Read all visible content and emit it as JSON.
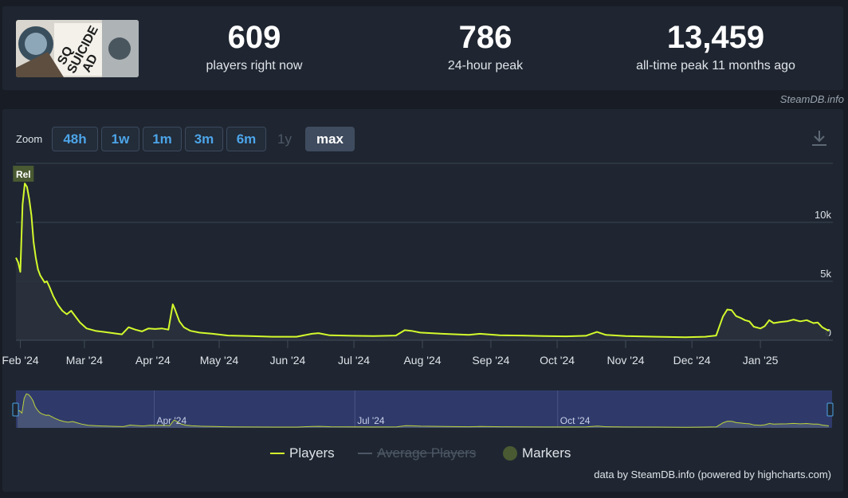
{
  "stats": {
    "now_value": "609",
    "now_label": "players right now",
    "peak24_value": "786",
    "peak24_label": "24-hour peak",
    "alltime_value": "13,459",
    "alltime_label": "all-time peak 11 months ago"
  },
  "credit_top": "SteamDB.info",
  "zoom": {
    "label": "Zoom",
    "buttons": [
      "48h",
      "1w",
      "1m",
      "3m",
      "6m",
      "1y",
      "max"
    ],
    "active": "max",
    "disabled": [
      "1y"
    ]
  },
  "legend": {
    "players": "Players",
    "average": "Average Players",
    "markers": "Markers"
  },
  "credit_bottom": "data by SteamDB.info (powered by highcharts.com)",
  "colors": {
    "players_line": "#d4fa2c",
    "marker": "#4a5a32",
    "accent_blue": "#4ca5e8",
    "navigator_bg": "#2f3a6b"
  },
  "chart_data": {
    "type": "line",
    "ylim": [
      0,
      15000
    ],
    "y_ticks": [
      0,
      5000,
      10000
    ],
    "y_tick_labels": [
      "0",
      "5k",
      "10k"
    ],
    "x_tick_labels": [
      "Feb '24",
      "Mar '24",
      "Apr '24",
      "May '24",
      "Jun '24",
      "Jul '24",
      "Aug '24",
      "Sep '24",
      "Oct '24",
      "Nov '24",
      "Dec '24",
      "Jan '25"
    ],
    "navigator_tick_labels": [
      "Apr '24",
      "Jul '24",
      "Oct '24"
    ],
    "marker_label": "Rel",
    "marker_date": "2024-02-02",
    "series": [
      {
        "name": "Players",
        "points": [
          [
            "2024-01-30",
            7000
          ],
          [
            "2024-01-31",
            6600
          ],
          [
            "2024-02-01",
            5800
          ],
          [
            "2024-02-02",
            11500
          ],
          [
            "2024-02-03",
            13300
          ],
          [
            "2024-02-04",
            13000
          ],
          [
            "2024-02-05",
            12000
          ],
          [
            "2024-02-06",
            10600
          ],
          [
            "2024-02-07",
            8300
          ],
          [
            "2024-02-08",
            7000
          ],
          [
            "2024-02-09",
            6000
          ],
          [
            "2024-02-10",
            5500
          ],
          [
            "2024-02-12",
            4900
          ],
          [
            "2024-02-13",
            5000
          ],
          [
            "2024-02-14",
            4600
          ],
          [
            "2024-02-16",
            3700
          ],
          [
            "2024-02-18",
            3000
          ],
          [
            "2024-02-20",
            2500
          ],
          [
            "2024-02-22",
            2200
          ],
          [
            "2024-02-24",
            2500
          ],
          [
            "2024-02-26",
            2000
          ],
          [
            "2024-02-28",
            1500
          ],
          [
            "2024-03-02",
            1000
          ],
          [
            "2024-03-06",
            800
          ],
          [
            "2024-03-10",
            700
          ],
          [
            "2024-03-14",
            600
          ],
          [
            "2024-03-18",
            500
          ],
          [
            "2024-03-21",
            1100
          ],
          [
            "2024-03-24",
            900
          ],
          [
            "2024-03-27",
            750
          ],
          [
            "2024-03-30",
            1000
          ],
          [
            "2024-04-02",
            950
          ],
          [
            "2024-04-05",
            1000
          ],
          [
            "2024-04-08",
            900
          ],
          [
            "2024-04-10",
            3050
          ],
          [
            "2024-04-11",
            2600
          ],
          [
            "2024-04-13",
            1600
          ],
          [
            "2024-04-15",
            1100
          ],
          [
            "2024-04-18",
            800
          ],
          [
            "2024-04-22",
            650
          ],
          [
            "2024-04-28",
            550
          ],
          [
            "2024-05-05",
            400
          ],
          [
            "2024-05-15",
            350
          ],
          [
            "2024-05-25",
            300
          ],
          [
            "2024-06-05",
            300
          ],
          [
            "2024-06-12",
            550
          ],
          [
            "2024-06-15",
            600
          ],
          [
            "2024-06-20",
            420
          ],
          [
            "2024-06-30",
            380
          ],
          [
            "2024-07-10",
            350
          ],
          [
            "2024-07-20",
            400
          ],
          [
            "2024-07-24",
            850
          ],
          [
            "2024-07-27",
            800
          ],
          [
            "2024-07-31",
            650
          ],
          [
            "2024-08-10",
            550
          ],
          [
            "2024-08-22",
            450
          ],
          [
            "2024-08-27",
            550
          ],
          [
            "2024-09-05",
            420
          ],
          [
            "2024-09-15",
            400
          ],
          [
            "2024-09-25",
            350
          ],
          [
            "2024-10-05",
            330
          ],
          [
            "2024-10-14",
            380
          ],
          [
            "2024-10-19",
            700
          ],
          [
            "2024-10-23",
            450
          ],
          [
            "2024-11-01",
            350
          ],
          [
            "2024-11-15",
            300
          ],
          [
            "2024-11-28",
            250
          ],
          [
            "2024-12-07",
            300
          ],
          [
            "2024-12-12",
            400
          ],
          [
            "2024-12-15",
            2000
          ],
          [
            "2024-12-17",
            2600
          ],
          [
            "2024-12-19",
            2550
          ],
          [
            "2024-12-21",
            2050
          ],
          [
            "2024-12-23",
            1900
          ],
          [
            "2024-12-25",
            1700
          ],
          [
            "2024-12-27",
            1600
          ],
          [
            "2024-12-29",
            1150
          ],
          [
            "2025-01-01",
            1000
          ],
          [
            "2025-01-03",
            1200
          ],
          [
            "2025-01-05",
            1700
          ],
          [
            "2025-01-07",
            1450
          ],
          [
            "2025-01-10",
            1550
          ],
          [
            "2025-01-13",
            1600
          ],
          [
            "2025-01-16",
            1750
          ],
          [
            "2025-01-19",
            1600
          ],
          [
            "2025-01-22",
            1700
          ],
          [
            "2025-01-25",
            1450
          ],
          [
            "2025-01-27",
            1500
          ],
          [
            "2025-01-29",
            1100
          ],
          [
            "2025-01-31",
            900
          ],
          [
            "2025-02-01",
            786
          ]
        ]
      }
    ]
  }
}
